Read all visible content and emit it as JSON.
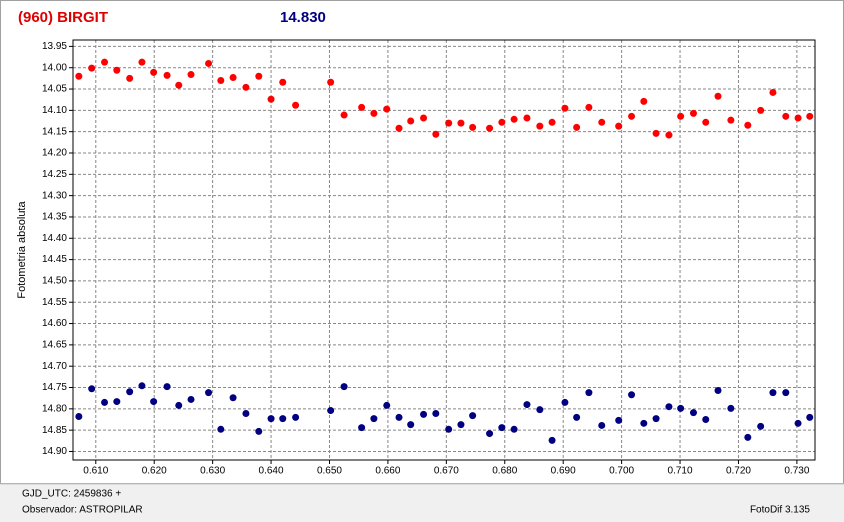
{
  "chart_data": {
    "type": "scatter",
    "title": "(960) BIRGIT",
    "subtitle": "14.830",
    "y_label": "Fotometria absoluta",
    "footer_left_1": "GJD_UTC: 2459836 +",
    "footer_left_2": "Observador: ASTROPILAR",
    "footer_right": "FotoDif 3.135",
    "title_color": "#e00000",
    "subtitle_color": "#000080",
    "grid": true,
    "y_inverted": true,
    "xlim": [
      0.6061,
      0.7331
    ],
    "ylim": [
      13.935,
      14.92
    ],
    "xticks": [
      {
        "value": 0.61,
        "label": "0.610"
      },
      {
        "value": 0.62,
        "label": "0.620"
      },
      {
        "value": 0.63,
        "label": "0.630"
      },
      {
        "value": 0.64,
        "label": "0.640"
      },
      {
        "value": 0.65,
        "label": "0.650"
      },
      {
        "value": 0.66,
        "label": "0.660"
      },
      {
        "value": 0.67,
        "label": "0.670"
      },
      {
        "value": 0.68,
        "label": "0.680"
      },
      {
        "value": 0.69,
        "label": "0.690"
      },
      {
        "value": 0.7,
        "label": "0.700"
      },
      {
        "value": 0.71,
        "label": "0.710"
      },
      {
        "value": 0.72,
        "label": "0.720"
      },
      {
        "value": 0.73,
        "label": "0.730"
      }
    ],
    "yticks": [
      13.95,
      {
        "value": 14.0,
        "label": "14.00"
      },
      14.05,
      {
        "value": 14.1,
        "label": "14.10"
      },
      14.15,
      {
        "value": 14.2,
        "label": "14.20"
      },
      14.25,
      {
        "value": 14.3,
        "label": "14.30"
      },
      14.35,
      {
        "value": 14.4,
        "label": "14.40"
      },
      14.45,
      {
        "value": 14.5,
        "label": "14.50"
      },
      14.55,
      {
        "value": 14.6,
        "label": "14.60"
      },
      14.65,
      {
        "value": 14.7,
        "label": "14.70"
      },
      14.75,
      {
        "value": 14.8,
        "label": "14.80"
      },
      14.85,
      {
        "value": 14.9,
        "label": "14.90"
      }
    ],
    "x": [
      0.6071,
      0.6093,
      0.6115,
      0.6136,
      0.6158,
      0.6179,
      0.6199,
      0.6222,
      0.6242,
      0.6263,
      0.6293,
      0.6314,
      0.6335,
      0.6357,
      0.6379,
      0.64,
      0.642,
      0.6442,
      0.6502,
      0.6525,
      0.6555,
      0.6576,
      0.6598,
      0.6619,
      0.6639,
      0.6661,
      0.6682,
      0.6704,
      0.6725,
      0.6745,
      0.6774,
      0.6795,
      0.6816,
      0.6838,
      0.686,
      0.6881,
      0.6903,
      0.6923,
      0.6944,
      0.6966,
      0.6995,
      0.7017,
      0.7038,
      0.7059,
      0.7081,
      0.7101,
      0.7123,
      0.7144,
      0.7165,
      0.7187,
      0.7216,
      0.7238,
      0.7259,
      0.7281,
      0.7302,
      0.7322
    ],
    "series": [
      {
        "color": "#ff0000",
        "values": [
          14.02,
          14.001,
          13.987,
          14.006,
          14.025,
          13.987,
          14.011,
          14.018,
          14.041,
          14.016,
          13.99,
          14.03,
          14.023,
          14.046,
          14.02,
          14.074,
          14.034,
          14.088,
          14.034,
          14.111,
          14.093,
          14.107,
          14.097,
          14.142,
          14.125,
          14.118,
          14.156,
          14.13,
          14.13,
          14.14,
          14.142,
          14.128,
          14.121,
          14.118,
          14.137,
          14.128,
          14.095,
          14.14,
          14.093,
          14.128,
          14.137,
          14.114,
          14.079,
          14.154,
          14.158,
          14.114,
          14.107,
          14.128,
          14.067,
          14.123,
          14.135,
          14.1,
          14.058,
          14.114,
          14.118,
          14.114
        ]
      },
      {
        "color": "#000080",
        "values": [
          14.818,
          14.753,
          14.785,
          14.783,
          14.76,
          14.746,
          14.783,
          14.748,
          14.792,
          14.778,
          14.762,
          14.848,
          14.774,
          14.811,
          14.853,
          14.823,
          14.823,
          14.82,
          14.804,
          14.748,
          14.844,
          14.823,
          14.792,
          14.82,
          14.837,
          14.813,
          14.811,
          14.848,
          14.837,
          14.816,
          14.858,
          14.844,
          14.848,
          14.79,
          14.802,
          14.874,
          14.785,
          14.82,
          14.762,
          14.839,
          14.827,
          14.767,
          14.834,
          14.823,
          14.795,
          14.799,
          14.809,
          14.825,
          14.757,
          14.799,
          14.867,
          14.841,
          14.762,
          14.762,
          14.834,
          14.82
        ]
      }
    ]
  }
}
